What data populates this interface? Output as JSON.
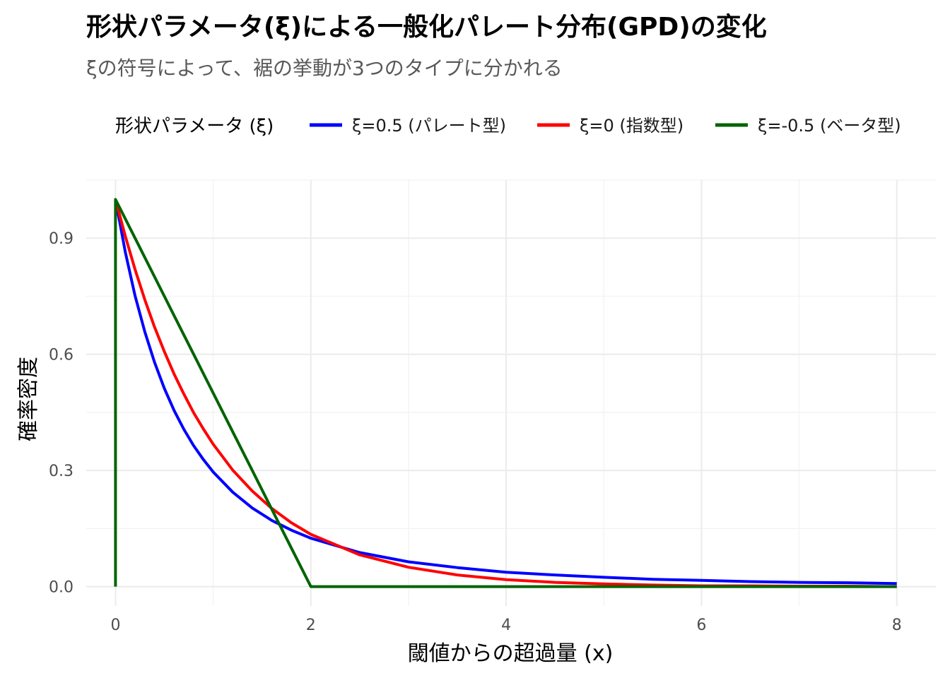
{
  "chart_data": {
    "type": "line",
    "title": "形状パラメータ(ξ)による一般化パレート分布(GPD)の変化",
    "subtitle": "ξの符号によって、裾の挙動が3つのタイプに分かれる",
    "xlabel": "閾値からの超過量 (x)",
    "ylabel": "確率密度",
    "xlim": [
      -0.3,
      8.4
    ],
    "ylim": [
      -0.05,
      1.05
    ],
    "x_ticks": [
      0,
      2,
      4,
      6,
      8
    ],
    "x_tick_labels": [
      "0",
      "2",
      "4",
      "6",
      "8"
    ],
    "y_ticks": [
      0.0,
      0.3,
      0.6,
      0.9
    ],
    "y_tick_labels": [
      "0.0",
      "0.3",
      "0.6",
      "0.9"
    ],
    "x_minor_ticks": [
      1,
      3,
      5,
      7
    ],
    "y_minor_ticks": [
      0.15,
      0.45,
      0.75,
      1.05
    ],
    "grid": true,
    "legend": {
      "title": "形状パラメータ (ξ)",
      "position": "top"
    },
    "series": [
      {
        "name": "ξ=0.5 (パレート型)",
        "color": "#0000FF",
        "x": [
          0,
          0.1,
          0.2,
          0.3,
          0.4,
          0.5,
          0.6,
          0.7,
          0.8,
          0.9,
          1.0,
          1.2,
          1.4,
          1.6,
          1.8,
          2.0,
          2.5,
          3.0,
          3.5,
          4.0,
          4.5,
          5.0,
          5.5,
          6.0,
          6.5,
          7.0,
          7.5,
          8.0
        ],
        "y": [
          1.0,
          0.864,
          0.751,
          0.658,
          0.579,
          0.512,
          0.455,
          0.406,
          0.364,
          0.328,
          0.296,
          0.244,
          0.203,
          0.171,
          0.146,
          0.125,
          0.088,
          0.064,
          0.049,
          0.037,
          0.03,
          0.024,
          0.019,
          0.016,
          0.013,
          0.011,
          0.01,
          0.008
        ]
      },
      {
        "name": "ξ=0 (指数型)",
        "color": "#FF0000",
        "x": [
          0,
          0.1,
          0.2,
          0.3,
          0.4,
          0.5,
          0.6,
          0.7,
          0.8,
          0.9,
          1.0,
          1.2,
          1.4,
          1.6,
          1.8,
          2.0,
          2.5,
          3.0,
          3.5,
          4.0,
          4.5,
          5.0,
          5.5,
          6.0,
          6.5,
          7.0,
          7.5,
          8.0
        ],
        "y": [
          1.0,
          0.905,
          0.819,
          0.741,
          0.67,
          0.607,
          0.549,
          0.497,
          0.449,
          0.407,
          0.368,
          0.301,
          0.247,
          0.202,
          0.165,
          0.135,
          0.082,
          0.05,
          0.03,
          0.018,
          0.011,
          0.007,
          0.004,
          0.002,
          0.002,
          0.001,
          0.001,
          0.0
        ]
      },
      {
        "name": "ξ=-0.5 (ベータ型)",
        "color": "#006400",
        "x": [
          0,
          0,
          0.2,
          0.4,
          0.6,
          0.8,
          1.0,
          1.2,
          1.4,
          1.6,
          1.8,
          2.0,
          2.5,
          3.0,
          4.0,
          5.0,
          6.0,
          7.0,
          8.0
        ],
        "y": [
          0.0,
          1.0,
          0.9,
          0.8,
          0.7,
          0.6,
          0.5,
          0.4,
          0.3,
          0.2,
          0.1,
          0.0,
          0.0,
          0.0,
          0.0,
          0.0,
          0.0,
          0.0,
          0.0
        ]
      }
    ]
  }
}
